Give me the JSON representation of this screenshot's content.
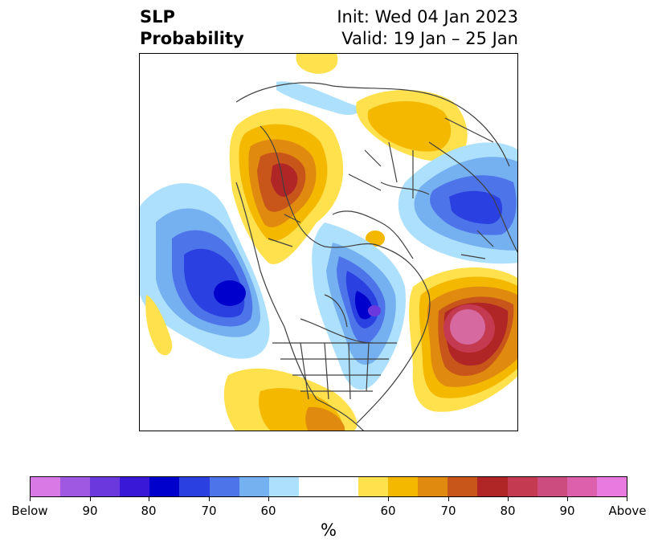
{
  "title": {
    "left_line1": "SLP",
    "left_line2": "Probability",
    "right_line1": "Init: Wed 04 Jan 2023",
    "right_line2": "Valid: 19 Jan – 25 Jan"
  },
  "map": {
    "projection": "polar-stereographic",
    "region": "Northern Hemisphere",
    "colors": {
      "below_90": "#3520d0",
      "below_80": "#0000cd",
      "below_70": "#2a40e0",
      "below_60_a": "#4d74e8",
      "below_60_b": "#75b0f0",
      "below_50": "#ace0fc",
      "above_50": "#ffe14d",
      "above_60": "#f5b800",
      "above_65": "#e08a10",
      "above_70": "#c8561a",
      "above_80": "#b02525",
      "above_85": "#c43a50",
      "above_90": "#d66aa0",
      "land_line": "#404040"
    }
  },
  "colorbar": {
    "segments": [
      "#d879e6",
      "#9f58e2",
      "#6a38dc",
      "#3a18d8",
      "#0000cd",
      "#2a40e0",
      "#4d74e8",
      "#75b0f0",
      "#ace0fc",
      "#ffffff",
      "#ffe14d",
      "#f5b800",
      "#e08a10",
      "#c8561a",
      "#b02525",
      "#c43a50",
      "#cc4c80",
      "#dd60ac",
      "#e87ae0"
    ],
    "tick_labels": [
      "Below",
      "90",
      "80",
      "70",
      "60",
      "60",
      "70",
      "80",
      "90",
      "Above"
    ],
    "unit": "%"
  }
}
